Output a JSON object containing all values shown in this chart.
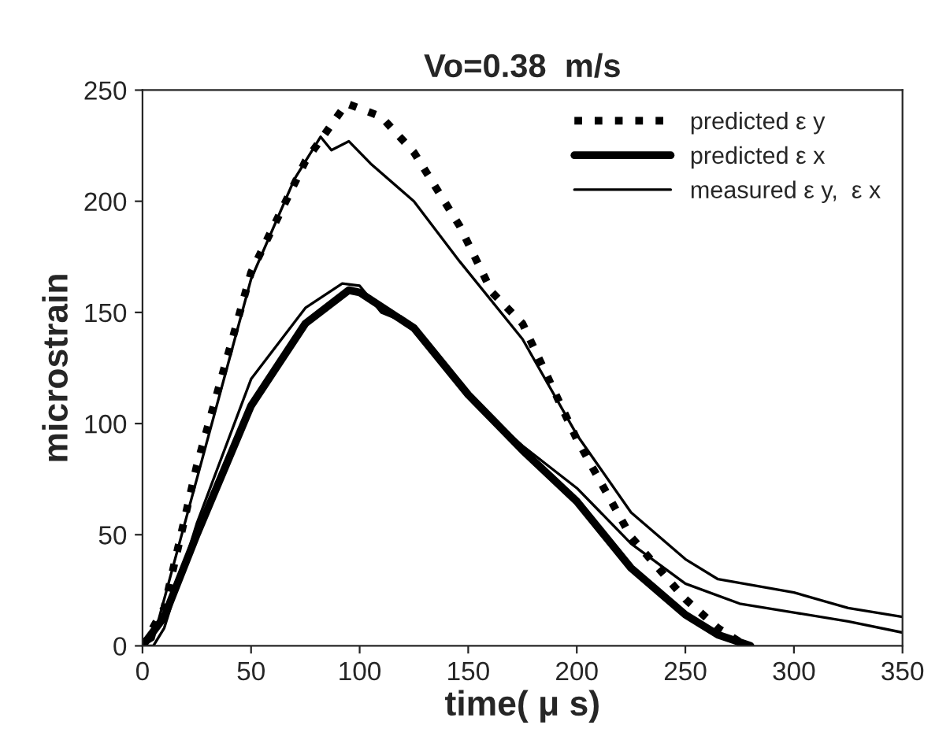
{
  "chart_data": {
    "type": "line",
    "title": "Vo=0.38  m/s",
    "xlabel": "time( μ s)",
    "ylabel": "microstrain",
    "xlim": [
      0,
      350
    ],
    "xticks": [
      0,
      50,
      100,
      150,
      200,
      250,
      300,
      350
    ],
    "ylim": [
      0,
      250
    ],
    "yticks": [
      0,
      50,
      100,
      150,
      200,
      250
    ],
    "grid": false,
    "legend": "top right",
    "marker": "none",
    "series": [
      {
        "name": "predicted ε y",
        "color": "#000000",
        "line_style": "dotted",
        "x": [
          0,
          10,
          25,
          50,
          75,
          94,
          110,
          125,
          146,
          161,
          175,
          200,
          225,
          250,
          265,
          278
        ],
        "values": [
          0,
          17,
          81,
          168,
          218,
          244,
          238,
          222,
          189,
          159,
          145,
          93,
          49,
          21,
          8,
          0
        ]
      },
      {
        "name": "predicted ε x",
        "color": "#000000",
        "line_style": "solid",
        "x": [
          0,
          10,
          25,
          50,
          75,
          95,
          100,
          125,
          150,
          161,
          175,
          200,
          225,
          250,
          265,
          280
        ],
        "values": [
          0,
          13,
          50,
          108,
          145,
          160,
          159,
          143,
          113,
          102,
          88,
          65,
          35,
          14,
          5,
          0
        ]
      },
      {
        "name": "measured ε y,  ε x",
        "color": "#000000",
        "line_style": "solid",
        "x": [
          0,
          5,
          25,
          50,
          70,
          82,
          87,
          95,
          105,
          125,
          146,
          175,
          200,
          210,
          225,
          250,
          265,
          300,
          325,
          350
        ],
        "values": [
          0,
          3,
          75,
          165,
          210,
          229,
          223,
          227,
          217,
          200,
          173,
          138,
          95,
          81,
          60,
          39,
          30,
          24,
          17,
          13
        ]
      },
      {
        "name": null,
        "color": "#000000",
        "line_style": "solid",
        "x": [
          0,
          5,
          10,
          25,
          50,
          75,
          92,
          100,
          110,
          125,
          150,
          175,
          200,
          225,
          250,
          275,
          300,
          325,
          350
        ],
        "values": [
          0,
          0,
          8,
          55,
          120,
          152,
          163,
          162,
          150,
          144,
          112,
          90,
          71,
          46,
          28,
          19,
          15,
          11,
          6
        ]
      }
    ]
  }
}
